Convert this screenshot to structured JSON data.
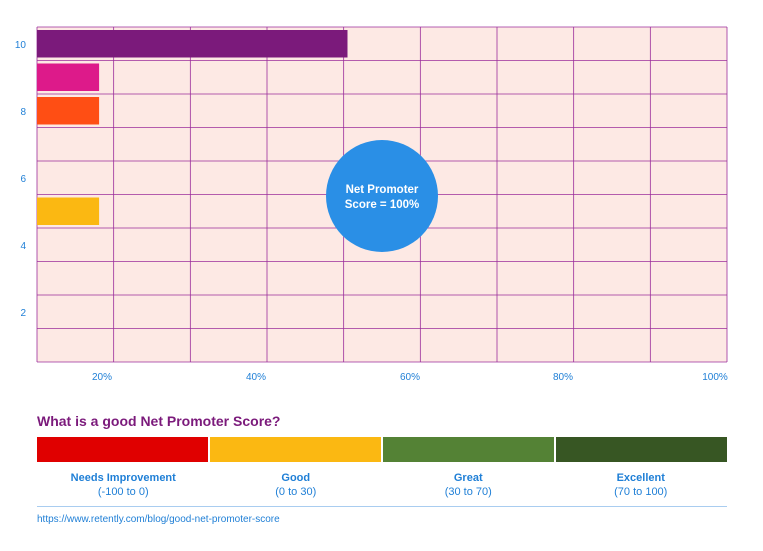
{
  "chart_data": {
    "type": "bar",
    "orientation": "horizontal",
    "y_ticks": [
      "10",
      "8",
      "6",
      "4",
      "2"
    ],
    "x_ticks": [
      "20%",
      "40%",
      "60%",
      "80%",
      "100%"
    ],
    "xlim": [
      0,
      100
    ],
    "ylim": [
      0,
      10.5
    ],
    "bars": [
      {
        "score": 10,
        "value": 45,
        "color": "#7b1a7b"
      },
      {
        "score": 9,
        "value": 9,
        "color": "#dd1a8a"
      },
      {
        "score": 8,
        "value": 9,
        "color": "#ff4e14"
      },
      {
        "score": 5,
        "value": 9,
        "color": "#fbb812"
      }
    ],
    "annotation": {
      "lines": [
        "Net Promoter",
        "Score = 100%"
      ],
      "color": "#2a8fe6"
    },
    "grid": true,
    "plot_background": "#fde9e4",
    "grid_color": "#9b2d9b"
  },
  "nps_section": {
    "title": "What is a good Net Promoter Score?",
    "categories": [
      {
        "name": "Needs Improvement",
        "range": "(-100 to 0)",
        "color": "#e00000"
      },
      {
        "name": "Good",
        "range": "(0 to 30)",
        "color": "#fbb812"
      },
      {
        "name": "Great",
        "range": "(30 to 70)",
        "color": "#548235"
      },
      {
        "name": "Excellent",
        "range": "(70 to 100)",
        "color": "#375623"
      }
    ]
  },
  "source": "https://www.retently.com/blog/good-net-promoter-score"
}
